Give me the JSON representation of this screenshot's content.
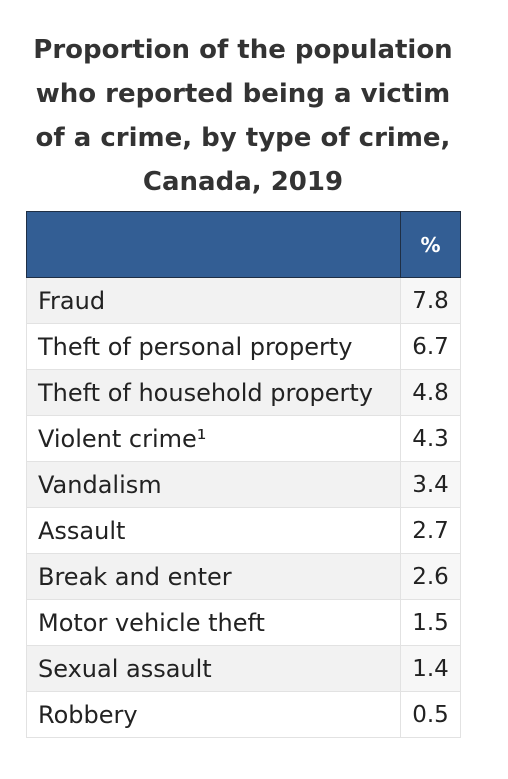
{
  "chart_data": {
    "type": "table",
    "title_lines": [
      "Proportion of the population",
      "who reported being a victim",
      "of a crime, by type of crime,",
      "Canada, 2019"
    ],
    "columns": [
      "",
      "%"
    ],
    "categories": [
      "Fraud",
      "Theft of personal property",
      "Theft of household property",
      "Violent crime¹",
      "Vandalism",
      "Assault",
      "Break and enter",
      "Motor vehicle theft",
      "Sexual assault",
      "Robbery"
    ],
    "values": [
      "7.8",
      "6.7",
      "4.8",
      "4.3",
      "3.4",
      "2.7",
      "2.6",
      "1.5",
      "1.4",
      "0.5"
    ],
    "colors": {
      "header_background": "#335e94",
      "header_text": "#ffffff",
      "row_shade": "#f2f2f2"
    }
  }
}
